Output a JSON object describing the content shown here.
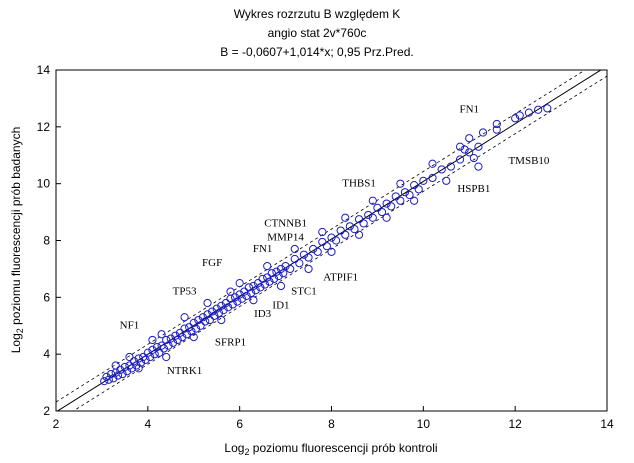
{
  "chart_data": {
    "type": "scatter",
    "title": "Wykres rozrzutu   B względem K",
    "subtitle": "angio stat 2v*760c",
    "equation": "B = -0,0607+1,014*x; 0,95 Prz.Pred.",
    "xlabel": {
      "base": "Log",
      "sub": "2",
      "rest": " poziomu fluorescencji prób kontroli"
    },
    "ylabel": {
      "base": "Log",
      "sub": "2",
      "rest": " poziomu fluorescencji prób badanych"
    },
    "xlim": [
      2,
      14
    ],
    "ylim": [
      2,
      14
    ],
    "x_ticks": [
      "2",
      "4",
      "6",
      "8",
      "10",
      "12",
      "14"
    ],
    "y_ticks": [
      "2",
      "4",
      "6",
      "8",
      "10",
      "12",
      "14"
    ],
    "regression": {
      "intercept": -0.0607,
      "slope": 1.014,
      "band": 0.35
    },
    "annotations": [
      {
        "text": "FN1",
        "x": 11.0,
        "y": 12.5
      },
      {
        "text": "TMSB10",
        "x": 12.3,
        "y": 10.7
      },
      {
        "text": "HSPB1",
        "x": 11.1,
        "y": 9.7
      },
      {
        "text": "THBS1",
        "x": 8.6,
        "y": 9.9
      },
      {
        "text": "CTNNB1",
        "x": 7.0,
        "y": 8.5
      },
      {
        "text": "MMP14",
        "x": 7.0,
        "y": 8.0
      },
      {
        "text": "FN1",
        "x": 6.5,
        "y": 7.6
      },
      {
        "text": "FGF",
        "x": 5.4,
        "y": 7.1
      },
      {
        "text": "ATPIF1",
        "x": 8.2,
        "y": 6.6
      },
      {
        "text": "STC1",
        "x": 7.4,
        "y": 6.1
      },
      {
        "text": "TP53",
        "x": 4.8,
        "y": 6.1
      },
      {
        "text": "ID1",
        "x": 6.9,
        "y": 5.6
      },
      {
        "text": "ID3",
        "x": 6.5,
        "y": 5.3
      },
      {
        "text": "NF1",
        "x": 3.6,
        "y": 4.9
      },
      {
        "text": "SFRP1",
        "x": 5.8,
        "y": 4.3
      },
      {
        "text": "NTRK1",
        "x": 4.8,
        "y": 3.3
      }
    ],
    "points": [
      [
        3.05,
        3.05
      ],
      [
        3.1,
        3.2
      ],
      [
        3.15,
        3.1
      ],
      [
        3.2,
        3.3
      ],
      [
        3.25,
        3.15
      ],
      [
        3.3,
        3.35
      ],
      [
        3.35,
        3.25
      ],
      [
        3.4,
        3.45
      ],
      [
        3.45,
        3.3
      ],
      [
        3.5,
        3.55
      ],
      [
        3.55,
        3.4
      ],
      [
        3.6,
        3.6
      ],
      [
        3.65,
        3.5
      ],
      [
        3.7,
        3.75
      ],
      [
        3.75,
        3.6
      ],
      [
        3.8,
        3.85
      ],
      [
        3.85,
        3.7
      ],
      [
        3.9,
        3.9
      ],
      [
        3.95,
        3.8
      ],
      [
        4.0,
        4.05
      ],
      [
        4.05,
        3.9
      ],
      [
        4.1,
        4.15
      ],
      [
        4.15,
        4.0
      ],
      [
        4.2,
        4.25
      ],
      [
        4.25,
        4.05
      ],
      [
        4.3,
        4.3
      ],
      [
        4.35,
        4.2
      ],
      [
        4.4,
        4.5
      ],
      [
        4.45,
        4.3
      ],
      [
        4.5,
        4.55
      ],
      [
        4.55,
        4.4
      ],
      [
        4.6,
        4.65
      ],
      [
        4.65,
        4.5
      ],
      [
        4.7,
        4.75
      ],
      [
        4.75,
        4.6
      ],
      [
        4.8,
        4.9
      ],
      [
        4.85,
        4.7
      ],
      [
        4.9,
        4.95
      ],
      [
        4.95,
        4.8
      ],
      [
        5.0,
        5.1
      ],
      [
        5.05,
        4.9
      ],
      [
        5.1,
        5.2
      ],
      [
        5.15,
        5.0
      ],
      [
        5.2,
        5.3
      ],
      [
        5.25,
        5.15
      ],
      [
        5.3,
        5.4
      ],
      [
        5.35,
        5.2
      ],
      [
        5.4,
        5.5
      ],
      [
        5.45,
        5.35
      ],
      [
        5.5,
        5.6
      ],
      [
        5.55,
        5.45
      ],
      [
        5.6,
        5.7
      ],
      [
        5.65,
        5.55
      ],
      [
        5.7,
        5.8
      ],
      [
        5.75,
        5.65
      ],
      [
        5.8,
        5.95
      ],
      [
        5.85,
        5.75
      ],
      [
        5.9,
        6.0
      ],
      [
        5.95,
        5.85
      ],
      [
        6.0,
        6.1
      ],
      [
        6.05,
        5.95
      ],
      [
        6.1,
        6.2
      ],
      [
        6.15,
        6.05
      ],
      [
        6.2,
        6.35
      ],
      [
        6.25,
        6.15
      ],
      [
        6.3,
        6.4
      ],
      [
        6.35,
        6.25
      ],
      [
        6.4,
        6.5
      ],
      [
        6.45,
        6.35
      ],
      [
        6.5,
        6.65
      ],
      [
        6.55,
        6.45
      ],
      [
        6.6,
        6.7
      ],
      [
        6.65,
        6.55
      ],
      [
        6.7,
        6.85
      ],
      [
        6.75,
        6.65
      ],
      [
        6.8,
        6.9
      ],
      [
        6.85,
        6.75
      ],
      [
        6.9,
        7.0
      ],
      [
        6.95,
        6.85
      ],
      [
        7.0,
        7.1
      ],
      [
        7.1,
        7.0
      ],
      [
        7.2,
        7.35
      ],
      [
        7.3,
        7.2
      ],
      [
        7.4,
        7.5
      ],
      [
        7.5,
        7.4
      ],
      [
        7.6,
        7.7
      ],
      [
        7.7,
        7.6
      ],
      [
        7.8,
        7.95
      ],
      [
        7.9,
        7.8
      ],
      [
        8.0,
        8.1
      ],
      [
        8.1,
        8.0
      ],
      [
        8.2,
        8.35
      ],
      [
        8.3,
        8.2
      ],
      [
        8.4,
        8.5
      ],
      [
        8.5,
        8.4
      ],
      [
        8.6,
        8.75
      ],
      [
        8.7,
        8.6
      ],
      [
        8.8,
        8.9
      ],
      [
        8.9,
        8.8
      ],
      [
        9.0,
        9.15
      ],
      [
        9.1,
        9.0
      ],
      [
        9.2,
        9.3
      ],
      [
        9.3,
        9.2
      ],
      [
        9.4,
        9.55
      ],
      [
        9.5,
        9.4
      ],
      [
        9.6,
        9.7
      ],
      [
        9.7,
        9.6
      ],
      [
        9.8,
        9.95
      ],
      [
        9.9,
        9.8
      ],
      [
        10.0,
        10.1
      ],
      [
        10.2,
        10.2
      ],
      [
        10.4,
        10.5
      ],
      [
        10.6,
        10.6
      ],
      [
        10.8,
        10.85
      ],
      [
        11.0,
        11.1
      ],
      [
        11.2,
        11.3
      ],
      [
        11.0,
        11.6
      ],
      [
        11.3,
        11.8
      ],
      [
        11.1,
        10.9
      ],
      [
        10.9,
        11.2
      ],
      [
        12.0,
        12.3
      ],
      [
        12.3,
        12.5
      ],
      [
        12.5,
        12.6
      ],
      [
        12.7,
        12.65
      ],
      [
        11.6,
        11.9
      ],
      [
        12.1,
        12.4
      ],
      [
        3.6,
        3.9
      ],
      [
        4.1,
        4.5
      ],
      [
        4.4,
        3.9
      ],
      [
        4.8,
        5.3
      ],
      [
        5.0,
        4.6
      ],
      [
        5.3,
        5.8
      ],
      [
        5.6,
        5.2
      ],
      [
        6.0,
        6.5
      ],
      [
        6.3,
        5.9
      ],
      [
        6.6,
        7.1
      ],
      [
        6.9,
        6.4
      ],
      [
        7.2,
        7.7
      ],
      [
        7.5,
        7.0
      ],
      [
        7.8,
        8.3
      ],
      [
        8.0,
        7.6
      ],
      [
        8.3,
        8.8
      ],
      [
        8.6,
        8.2
      ],
      [
        8.9,
        9.4
      ],
      [
        9.2,
        8.8
      ],
      [
        9.5,
        10.0
      ],
      [
        9.8,
        9.4
      ],
      [
        10.2,
        10.7
      ],
      [
        10.5,
        10.1
      ],
      [
        10.8,
        11.3
      ],
      [
        11.2,
        10.6
      ],
      [
        11.6,
        12.1
      ],
      [
        3.3,
        3.6
      ],
      [
        3.8,
        3.5
      ],
      [
        4.3,
        4.7
      ],
      [
        5.8,
        6.2
      ]
    ]
  }
}
